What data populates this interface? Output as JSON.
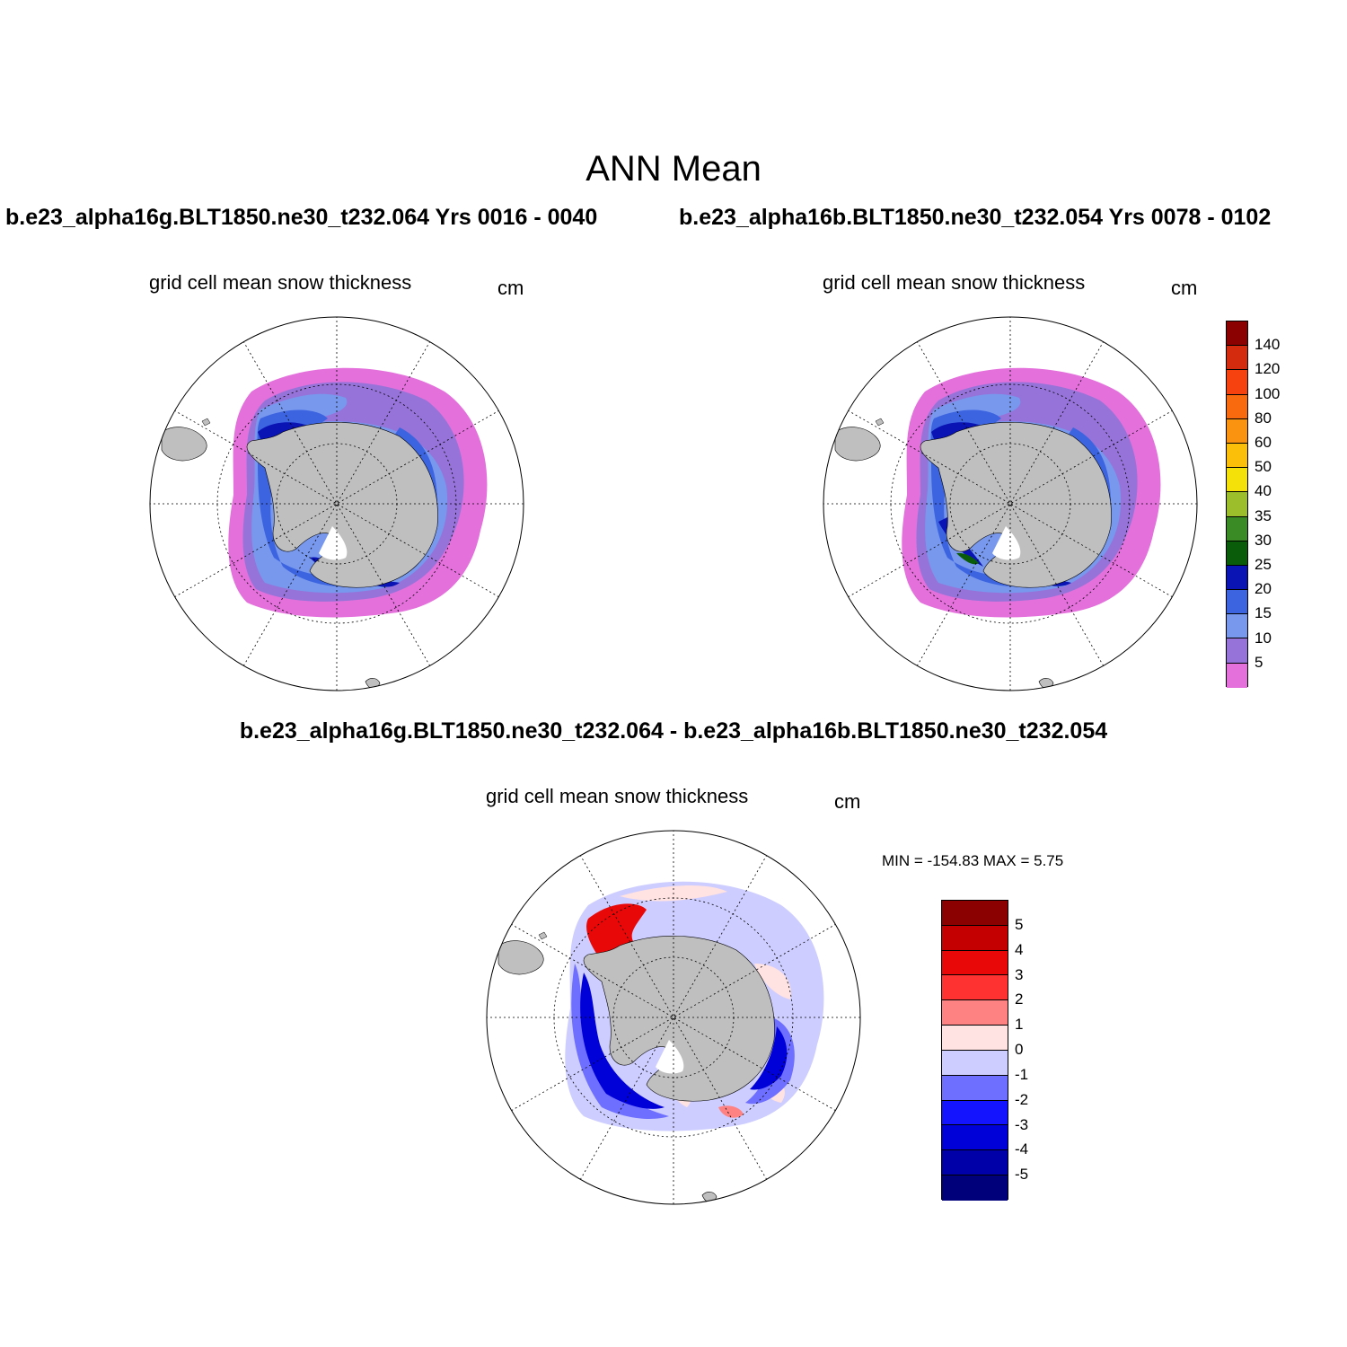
{
  "figure": {
    "title": "ANN Mean",
    "case_a_title": "b.e23_alpha16g.BLT1850.ne30_t232.064  Yrs 0016 - 0040",
    "case_b_title": "b.e23_alpha16b.BLT1850.ne30_t232.054  Yrs 0078 - 0102",
    "diff_title": "b.e23_alpha16g.BLT1850.ne30_t232.064 - b.e23_alpha16b.BLT1850.ne30_t232.054"
  },
  "panels": [
    {
      "id": "case-a",
      "variable": "grid cell mean snow thickness",
      "units": "cm"
    },
    {
      "id": "case-b",
      "variable": "grid cell mean snow thickness",
      "units": "cm"
    },
    {
      "id": "diff",
      "variable": "grid cell mean snow thickness",
      "units": "cm",
      "min_max_text": "MIN = -154.83 MAX =   5.75"
    }
  ],
  "colorbars": {
    "snow": {
      "labels": [
        "140",
        "120",
        "100",
        "80",
        "60",
        "50",
        "40",
        "35",
        "30",
        "25",
        "20",
        "15",
        "10",
        "5"
      ],
      "colors": [
        "#8b0000",
        "#d42a0e",
        "#f5420e",
        "#f96a0e",
        "#fa9410",
        "#fbbf0a",
        "#f5e10a",
        "#9cbe2b",
        "#3a8a26",
        "#0a5c0a",
        "#0a14b4",
        "#3c64e0",
        "#7898ee",
        "#9673d8",
        "#e470dc"
      ]
    },
    "diff": {
      "labels": [
        "5",
        "4",
        "3",
        "2",
        "1",
        "0",
        "-1",
        "-2",
        "-3",
        "-4",
        "-5"
      ],
      "colors": [
        "#8b0000",
        "#c40000",
        "#e80808",
        "#ff3232",
        "#ff8282",
        "#ffe2e2",
        "#cdcdff",
        "#6e6eff",
        "#1414ff",
        "#0000d8",
        "#0000a8",
        "#00007a"
      ]
    }
  }
}
